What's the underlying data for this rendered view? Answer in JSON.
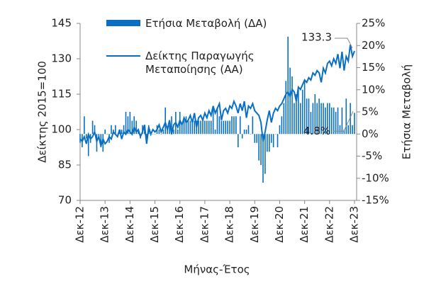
{
  "chart_data": {
    "type": "bar-line",
    "x_label": "Μήνας-Έτος",
    "y_label": "Δείκτης 2015=100",
    "y2_label": "Ετήσια Μεταβολή",
    "categories": [
      "Δεκ-12",
      null,
      null,
      null,
      null,
      null,
      null,
      null,
      null,
      null,
      null,
      null,
      "Δεκ-13",
      null,
      null,
      null,
      null,
      null,
      null,
      null,
      null,
      null,
      null,
      null,
      "Δεκ-14",
      null,
      null,
      null,
      null,
      null,
      null,
      null,
      null,
      null,
      null,
      null,
      "Δεκ-15",
      null,
      null,
      null,
      null,
      null,
      null,
      null,
      null,
      null,
      null,
      null,
      "Δεκ-16",
      null,
      null,
      null,
      null,
      null,
      null,
      null,
      null,
      null,
      null,
      null,
      "Δεκ-17",
      null,
      null,
      null,
      null,
      null,
      null,
      null,
      null,
      null,
      null,
      null,
      "Δεκ-18",
      null,
      null,
      null,
      null,
      null,
      null,
      null,
      null,
      null,
      null,
      null,
      "Δεκ-19",
      null,
      null,
      null,
      null,
      null,
      null,
      null,
      null,
      null,
      null,
      null,
      "Δεκ-20",
      null,
      null,
      null,
      null,
      null,
      null,
      null,
      null,
      null,
      null,
      null,
      "Δεκ-21",
      null,
      null,
      null,
      null,
      null,
      null,
      null,
      null,
      null,
      null,
      null,
      "Δεκ-22",
      null,
      null,
      null,
      null,
      null,
      null,
      null,
      null,
      null,
      null,
      null,
      "Δεκ-23"
    ],
    "series": [
      {
        "name": "Ετήσια Μεταβολή (ΔΑ)",
        "kind": "bar",
        "axis": "y2",
        "color": "#0a6fc2",
        "values": [
          -2,
          -3,
          4,
          -1,
          -5,
          -2,
          3,
          2,
          -4,
          -1,
          -3,
          -4,
          1,
          0,
          -2,
          2,
          1,
          2,
          0,
          1,
          1,
          2,
          5,
          4,
          5,
          3,
          4,
          3,
          1,
          -1,
          2,
          2,
          -2,
          2,
          0,
          0,
          0,
          2,
          1,
          0,
          1,
          6,
          1,
          2,
          4,
          1,
          5,
          1,
          5,
          2,
          3,
          4,
          3,
          3,
          3,
          3,
          3,
          3,
          3,
          3,
          3,
          3,
          3,
          3,
          6,
          1,
          6,
          4,
          3,
          3,
          3,
          3,
          3,
          4,
          4,
          4,
          -3,
          4,
          -1,
          1,
          1,
          2,
          0,
          4,
          -2,
          -2,
          -6,
          -7,
          -11,
          -9,
          -4,
          -4,
          -2,
          -3,
          0,
          -3,
          2,
          4,
          7,
          12,
          22,
          15,
          13,
          7,
          9,
          10,
          7,
          10,
          12,
          8,
          8,
          5,
          7,
          9,
          7,
          8,
          7,
          7,
          6,
          7,
          7,
          6,
          6,
          5,
          6,
          2,
          6,
          1,
          8,
          2,
          7,
          2,
          4.8
        ],
        "value_labels": [
          null,
          null,
          null,
          null,
          null,
          null,
          null,
          null,
          null,
          null,
          null,
          null,
          null,
          null,
          null,
          null,
          null,
          null,
          null,
          null,
          null,
          null,
          null,
          null,
          null,
          null,
          null,
          null,
          null,
          null,
          null,
          null,
          null,
          null,
          null,
          null,
          null,
          null,
          null,
          null,
          null,
          null,
          null,
          null,
          null,
          null,
          null,
          null,
          null,
          null,
          null,
          null,
          null,
          null,
          null,
          null,
          null,
          null,
          null,
          null,
          null,
          null,
          null,
          null,
          null,
          null,
          null,
          null,
          null,
          null,
          null,
          null,
          null,
          null,
          null,
          null,
          null,
          null,
          null,
          null,
          null,
          null,
          null,
          null,
          null,
          null,
          null,
          null,
          null,
          null,
          null,
          null,
          null,
          null,
          null,
          null,
          null,
          null,
          null,
          null,
          null,
          null,
          null,
          null,
          null,
          null,
          null,
          null,
          null,
          null,
          null,
          null,
          null,
          null,
          null,
          null,
          null,
          null,
          null,
          null,
          null,
          null,
          null,
          null,
          null,
          null,
          null,
          null,
          null,
          null,
          null,
          null,
          "4.8%"
        ]
      },
      {
        "name": "Δείκτης Παραγωγής Μεταποίησης (ΑΑ)",
        "kind": "line",
        "axis": "y",
        "color": "#0a6fc2",
        "values": [
          96,
          95,
          97,
          94,
          98,
          96,
          97,
          99,
          95,
          97,
          93,
          96,
          94,
          95,
          97,
          96,
          99,
          98,
          97,
          100,
          96,
          99,
          98,
          100,
          99,
          98,
          101,
          99,
          100,
          97,
          99,
          102,
          94,
          101,
          98,
          100,
          99,
          100,
          102,
          99,
          101,
          103,
          100,
          104,
          98,
          102,
          103,
          101,
          104,
          102,
          105,
          103,
          104,
          106,
          103,
          107,
          101,
          105,
          106,
          104,
          107,
          105,
          108,
          106,
          110,
          107,
          109,
          111,
          104,
          108,
          109,
          107,
          110,
          109,
          112,
          110,
          107,
          111,
          108,
          112,
          105,
          110,
          109,
          111,
          108,
          107,
          106,
          103,
          95,
          99,
          104,
          108,
          103,
          107,
          109,
          108,
          110,
          111,
          113,
          115,
          116,
          114,
          117,
          116,
          112,
          118,
          117,
          119,
          121,
          120,
          122,
          121,
          124,
          123,
          125,
          124,
          120,
          126,
          124,
          128,
          129,
          127,
          130,
          128,
          132,
          126,
          133,
          125,
          131,
          129,
          136,
          131,
          133.3
        ],
        "value_labels": [
          null,
          null,
          null,
          null,
          null,
          null,
          null,
          null,
          null,
          null,
          null,
          null,
          null,
          null,
          null,
          null,
          null,
          null,
          null,
          null,
          null,
          null,
          null,
          null,
          null,
          null,
          null,
          null,
          null,
          null,
          null,
          null,
          null,
          null,
          null,
          null,
          null,
          null,
          null,
          null,
          null,
          null,
          null,
          null,
          null,
          null,
          null,
          null,
          null,
          null,
          null,
          null,
          null,
          null,
          null,
          null,
          null,
          null,
          null,
          null,
          null,
          null,
          null,
          null,
          null,
          null,
          null,
          null,
          null,
          null,
          null,
          null,
          null,
          null,
          null,
          null,
          null,
          null,
          null,
          null,
          null,
          null,
          null,
          null,
          null,
          null,
          null,
          null,
          null,
          null,
          null,
          null,
          null,
          null,
          null,
          null,
          null,
          null,
          null,
          null,
          null,
          null,
          null,
          null,
          null,
          null,
          null,
          null,
          null,
          null,
          null,
          null,
          null,
          null,
          null,
          null,
          null,
          null,
          null,
          null,
          null,
          null,
          null,
          null,
          null,
          null,
          null,
          null,
          null,
          null,
          null,
          null,
          "133.3"
        ]
      }
    ],
    "ylim": [
      70,
      145
    ],
    "yticks": [
      70,
      85,
      100,
      115,
      130,
      145
    ],
    "y2lim": [
      -15,
      25
    ],
    "y2ticks": [
      {
        "value": -15,
        "label": "-15%"
      },
      {
        "value": -10,
        "label": "-10%"
      },
      {
        "value": -5,
        "label": "-5%"
      },
      {
        "value": 0,
        "label": "0%"
      },
      {
        "value": 5,
        "label": "5%"
      },
      {
        "value": 10,
        "label": "10%"
      },
      {
        "value": 15,
        "label": "15%"
      },
      {
        "value": 20,
        "label": "20%"
      },
      {
        "value": 25,
        "label": "25%"
      }
    ],
    "grid": false
  }
}
